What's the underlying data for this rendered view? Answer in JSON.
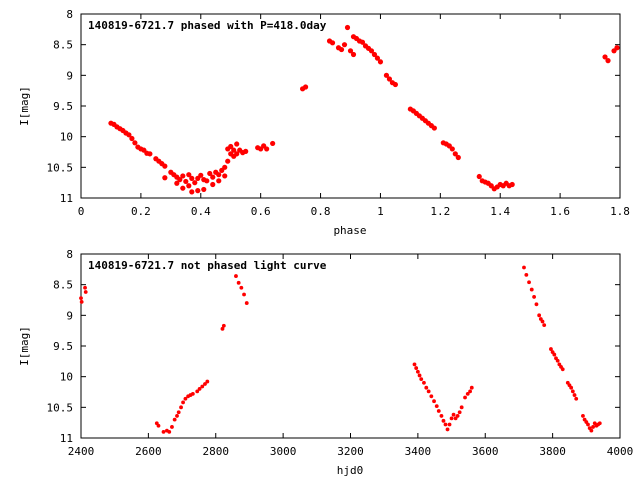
{
  "chart_data": [
    {
      "type": "scatter",
      "title": "140819-6721.7 phased with P=418.0day",
      "xlabel": "phase",
      "ylabel": "I[mag]",
      "xlim": [
        0,
        1.8
      ],
      "ylim": [
        8,
        11
      ],
      "y_inverted": true,
      "grid": false,
      "x_ticks": [
        "0",
        "0.2",
        "0.4",
        "0.6",
        "0.8",
        "1",
        "1.2",
        "1.4",
        "1.6",
        "1.8"
      ],
      "y_ticks": [
        "8",
        "8.5",
        "9",
        "9.5",
        "10",
        "10.5",
        "11"
      ],
      "marker_color": "#ff0000",
      "points": [
        [
          0.1,
          9.78
        ],
        [
          0.11,
          9.8
        ],
        [
          0.12,
          9.84
        ],
        [
          0.13,
          9.87
        ],
        [
          0.14,
          9.9
        ],
        [
          0.15,
          9.94
        ],
        [
          0.16,
          9.97
        ],
        [
          0.17,
          10.03
        ],
        [
          0.18,
          10.1
        ],
        [
          0.19,
          10.17
        ],
        [
          0.2,
          10.2
        ],
        [
          0.21,
          10.22
        ],
        [
          0.22,
          10.27
        ],
        [
          0.23,
          10.28
        ],
        [
          0.25,
          10.36
        ],
        [
          0.26,
          10.4
        ],
        [
          0.27,
          10.44
        ],
        [
          0.28,
          10.48
        ],
        [
          0.28,
          10.67
        ],
        [
          0.3,
          10.58
        ],
        [
          0.31,
          10.62
        ],
        [
          0.32,
          10.66
        ],
        [
          0.32,
          10.76
        ],
        [
          0.33,
          10.7
        ],
        [
          0.34,
          10.64
        ],
        [
          0.34,
          10.84
        ],
        [
          0.35,
          10.73
        ],
        [
          0.36,
          10.62
        ],
        [
          0.36,
          10.8
        ],
        [
          0.37,
          10.68
        ],
        [
          0.37,
          10.9
        ],
        [
          0.38,
          10.75
        ],
        [
          0.39,
          10.68
        ],
        [
          0.39,
          10.88
        ],
        [
          0.4,
          10.63
        ],
        [
          0.41,
          10.7
        ],
        [
          0.41,
          10.86
        ],
        [
          0.42,
          10.72
        ],
        [
          0.43,
          10.6
        ],
        [
          0.44,
          10.78
        ],
        [
          0.44,
          10.66
        ],
        [
          0.45,
          10.58
        ],
        [
          0.46,
          10.62
        ],
        [
          0.46,
          10.72
        ],
        [
          0.47,
          10.55
        ],
        [
          0.48,
          10.5
        ],
        [
          0.48,
          10.64
        ],
        [
          0.49,
          10.4
        ],
        [
          0.49,
          10.2
        ],
        [
          0.5,
          10.28
        ],
        [
          0.5,
          10.16
        ],
        [
          0.51,
          10.32
        ],
        [
          0.51,
          10.22
        ],
        [
          0.52,
          10.12
        ],
        [
          0.52,
          10.28
        ],
        [
          0.53,
          10.22
        ],
        [
          0.54,
          10.26
        ],
        [
          0.55,
          10.24
        ],
        [
          0.59,
          10.18
        ],
        [
          0.6,
          10.2
        ],
        [
          0.61,
          10.15
        ],
        [
          0.62,
          10.2
        ],
        [
          0.64,
          10.11
        ],
        [
          0.74,
          9.22
        ],
        [
          0.75,
          9.19
        ],
        [
          0.83,
          8.44
        ],
        [
          0.84,
          8.47
        ],
        [
          0.86,
          8.55
        ],
        [
          0.87,
          8.58
        ],
        [
          0.88,
          8.5
        ],
        [
          0.89,
          8.22
        ],
        [
          0.9,
          8.6
        ],
        [
          0.91,
          8.66
        ],
        [
          0.91,
          8.37
        ],
        [
          0.92,
          8.4
        ],
        [
          0.93,
          8.44
        ],
        [
          0.94,
          8.46
        ],
        [
          0.95,
          8.52
        ],
        [
          0.96,
          8.56
        ],
        [
          0.97,
          8.6
        ],
        [
          0.98,
          8.66
        ],
        [
          0.99,
          8.72
        ],
        [
          1.0,
          8.78
        ],
        [
          1.02,
          9.0
        ],
        [
          1.03,
          9.06
        ],
        [
          1.04,
          9.12
        ],
        [
          1.05,
          9.15
        ],
        [
          1.1,
          9.55
        ],
        [
          1.11,
          9.58
        ],
        [
          1.12,
          9.62
        ],
        [
          1.13,
          9.66
        ],
        [
          1.14,
          9.7
        ],
        [
          1.15,
          9.74
        ],
        [
          1.16,
          9.78
        ],
        [
          1.17,
          9.82
        ],
        [
          1.18,
          9.86
        ],
        [
          1.21,
          10.1
        ],
        [
          1.22,
          10.12
        ],
        [
          1.23,
          10.15
        ],
        [
          1.24,
          10.2
        ],
        [
          1.25,
          10.28
        ],
        [
          1.26,
          10.34
        ],
        [
          1.33,
          10.65
        ],
        [
          1.34,
          10.72
        ],
        [
          1.35,
          10.74
        ],
        [
          1.36,
          10.76
        ],
        [
          1.37,
          10.8
        ],
        [
          1.38,
          10.85
        ],
        [
          1.39,
          10.82
        ],
        [
          1.4,
          10.78
        ],
        [
          1.41,
          10.8
        ],
        [
          1.42,
          10.76
        ],
        [
          1.43,
          10.8
        ],
        [
          1.44,
          10.78
        ],
        [
          1.75,
          8.7
        ],
        [
          1.76,
          8.76
        ],
        [
          1.78,
          8.6
        ],
        [
          1.79,
          8.55
        ]
      ]
    },
    {
      "type": "scatter",
      "title": "140819-6721.7 not phased light curve",
      "xlabel": "hjd0",
      "ylabel": "I[mag]",
      "xlim": [
        2400,
        4000
      ],
      "ylim": [
        8,
        11
      ],
      "y_inverted": true,
      "grid": false,
      "x_ticks": [
        "2400",
        "2600",
        "2800",
        "3000",
        "3200",
        "3400",
        "3600",
        "3800",
        "4000"
      ],
      "y_ticks": [
        "8",
        "8.5",
        "9",
        "9.5",
        "10",
        "10.5",
        "11"
      ],
      "marker_color": "#ff0000",
      "points": [
        [
          2400,
          8.72
        ],
        [
          2402,
          8.78
        ],
        [
          2412,
          8.55
        ],
        [
          2414,
          8.62
        ],
        [
          2625,
          10.76
        ],
        [
          2630,
          10.8
        ],
        [
          2645,
          10.9
        ],
        [
          2655,
          10.88
        ],
        [
          2662,
          10.9
        ],
        [
          2670,
          10.82
        ],
        [
          2678,
          10.7
        ],
        [
          2685,
          10.64
        ],
        [
          2690,
          10.58
        ],
        [
          2697,
          10.5
        ],
        [
          2703,
          10.42
        ],
        [
          2710,
          10.36
        ],
        [
          2718,
          10.32
        ],
        [
          2725,
          10.3
        ],
        [
          2732,
          10.28
        ],
        [
          2745,
          10.24
        ],
        [
          2752,
          10.2
        ],
        [
          2760,
          10.16
        ],
        [
          2768,
          10.12
        ],
        [
          2775,
          10.08
        ],
        [
          2820,
          9.22
        ],
        [
          2824,
          9.17
        ],
        [
          2860,
          8.36
        ],
        [
          2868,
          8.47
        ],
        [
          2876,
          8.55
        ],
        [
          2884,
          8.66
        ],
        [
          2892,
          8.8
        ],
        [
          3390,
          9.8
        ],
        [
          3395,
          9.86
        ],
        [
          3400,
          9.92
        ],
        [
          3405,
          9.98
        ],
        [
          3410,
          10.04
        ],
        [
          3418,
          10.1
        ],
        [
          3425,
          10.18
        ],
        [
          3432,
          10.24
        ],
        [
          3440,
          10.32
        ],
        [
          3448,
          10.4
        ],
        [
          3456,
          10.48
        ],
        [
          3462,
          10.56
        ],
        [
          3470,
          10.64
        ],
        [
          3476,
          10.72
        ],
        [
          3482,
          10.78
        ],
        [
          3488,
          10.86
        ],
        [
          3494,
          10.78
        ],
        [
          3500,
          10.68
        ],
        [
          3506,
          10.62
        ],
        [
          3512,
          10.68
        ],
        [
          3518,
          10.64
        ],
        [
          3524,
          10.58
        ],
        [
          3530,
          10.5
        ],
        [
          3540,
          10.34
        ],
        [
          3548,
          10.28
        ],
        [
          3555,
          10.24
        ],
        [
          3560,
          10.18
        ],
        [
          3715,
          8.22
        ],
        [
          3722,
          8.34
        ],
        [
          3730,
          8.46
        ],
        [
          3738,
          8.58
        ],
        [
          3745,
          8.7
        ],
        [
          3752,
          8.82
        ],
        [
          3760,
          9.0
        ],
        [
          3765,
          9.06
        ],
        [
          3770,
          9.1
        ],
        [
          3775,
          9.16
        ],
        [
          3795,
          9.55
        ],
        [
          3800,
          9.6
        ],
        [
          3805,
          9.64
        ],
        [
          3810,
          9.7
        ],
        [
          3815,
          9.74
        ],
        [
          3820,
          9.8
        ],
        [
          3825,
          9.84
        ],
        [
          3830,
          9.88
        ],
        [
          3845,
          10.1
        ],
        [
          3850,
          10.14
        ],
        [
          3855,
          10.18
        ],
        [
          3860,
          10.24
        ],
        [
          3865,
          10.3
        ],
        [
          3870,
          10.36
        ],
        [
          3890,
          10.64
        ],
        [
          3895,
          10.7
        ],
        [
          3900,
          10.74
        ],
        [
          3905,
          10.78
        ],
        [
          3910,
          10.84
        ],
        [
          3915,
          10.88
        ],
        [
          3920,
          10.82
        ],
        [
          3925,
          10.76
        ],
        [
          3930,
          10.8
        ],
        [
          3935,
          10.78
        ],
        [
          3940,
          10.76
        ]
      ]
    }
  ]
}
